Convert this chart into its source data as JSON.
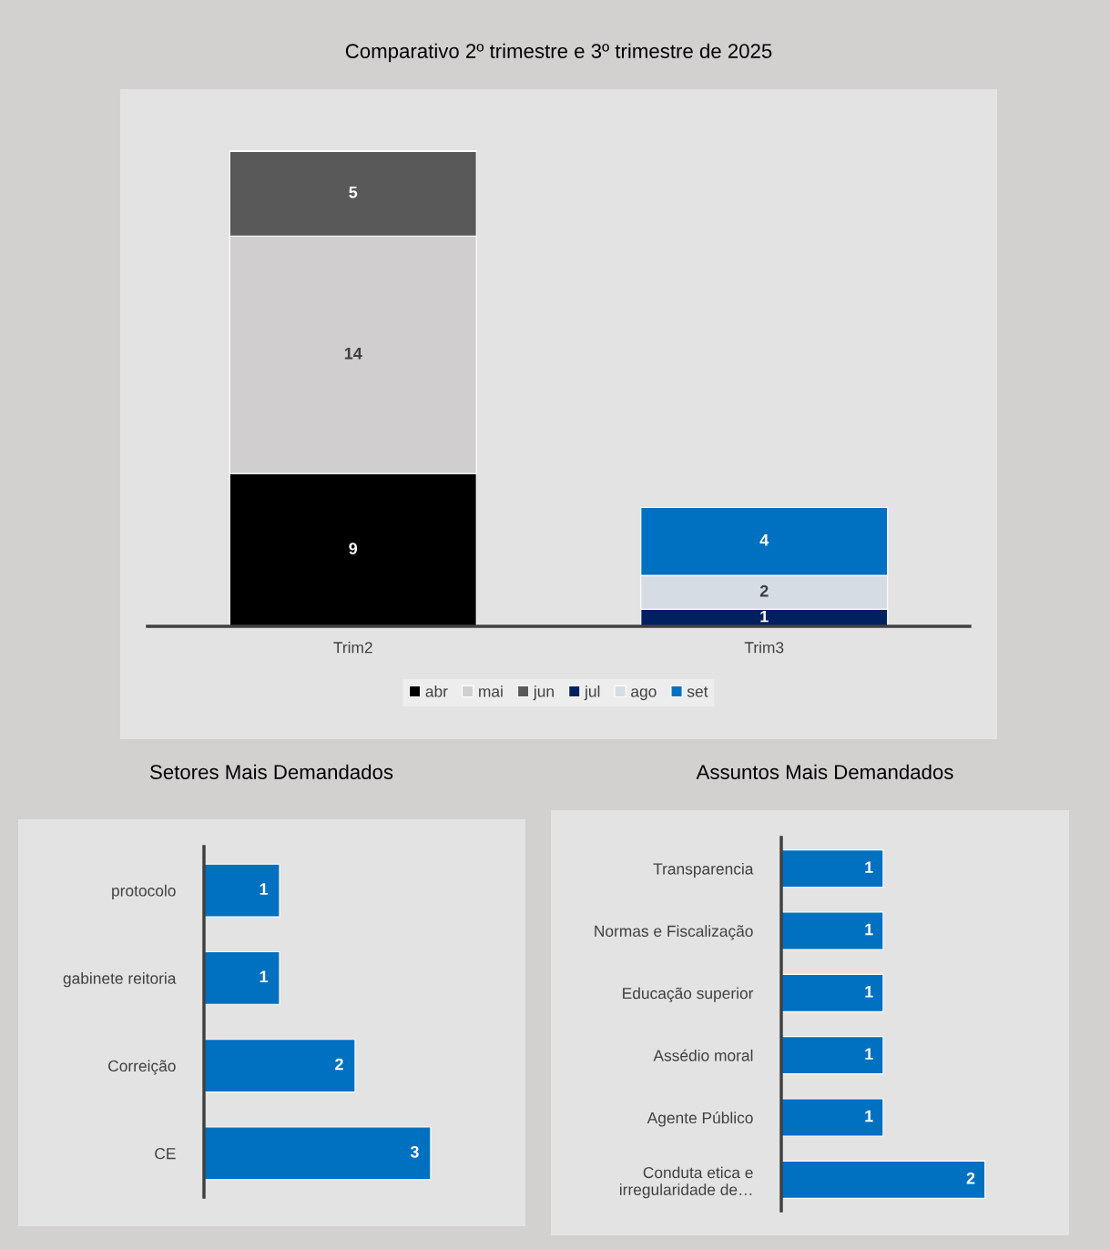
{
  "chart_data": [
    {
      "type": "bar",
      "title": "Comparativo 2º trimestre e 3º trimestre de 2025",
      "categories": [
        "Trim2",
        "Trim3"
      ],
      "stacked": true,
      "data_labels": true,
      "legend": "bottom",
      "series": [
        {
          "name": "abr",
          "color": "#000000",
          "values": [
            9,
            null
          ]
        },
        {
          "name": "mai",
          "color": "#d0cece",
          "values": [
            14,
            null
          ]
        },
        {
          "name": "jun",
          "color": "#595959",
          "values": [
            5,
            null
          ]
        },
        {
          "name": "jul",
          "color": "#002060",
          "values": [
            null,
            1
          ]
        },
        {
          "name": "ago",
          "color": "#d6dce4",
          "values": [
            null,
            2
          ]
        },
        {
          "name": "set",
          "color": "#0070c0",
          "values": [
            null,
            4
          ]
        }
      ]
    },
    {
      "type": "bar",
      "title": "Setores Mais Demandados",
      "orientation": "horizontal",
      "data_labels": true,
      "categories": [
        "protocolo",
        "gabinete reitoria",
        "Correição",
        "CE"
      ],
      "values": [
        1,
        1,
        2,
        3
      ],
      "color": "#0070c0"
    },
    {
      "type": "bar",
      "title": "Assuntos Mais Demandados",
      "orientation": "horizontal",
      "data_labels": true,
      "categories": [
        "Transparencia",
        "Normas e Fiscalização",
        "Educação superior",
        "Assédio moral",
        "Agente Público",
        "Conduta etica e\nirregularidade de…"
      ],
      "values": [
        1,
        1,
        1,
        1,
        1,
        2
      ],
      "color": "#0070c0"
    }
  ]
}
